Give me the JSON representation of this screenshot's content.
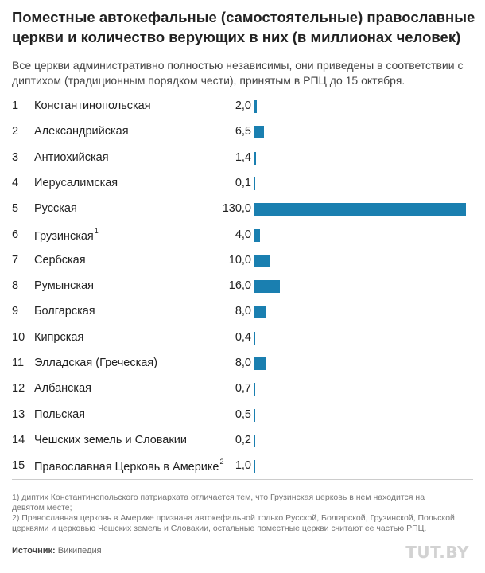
{
  "chart_data": {
    "type": "bar",
    "orientation": "horizontal",
    "title": "Поместные автокефальные (самостоятельные) православные церкви и количество верующих в них (в миллионах человек)",
    "subtitle": "Все церкви административно полностью независимы, они приведены в соответствии с диптихом (традиционным порядком чести), принятым в РПЦ до 15 октября.",
    "bar_color": "#1a7fb0",
    "xlim": [
      0,
      130
    ],
    "rows": [
      {
        "num": "1",
        "name": "Константинопольская",
        "note": "",
        "label": "2,0",
        "value": 2.0
      },
      {
        "num": "2",
        "name": "Александрийская",
        "note": "",
        "label": "6,5",
        "value": 6.5
      },
      {
        "num": "3",
        "name": "Антиохийская",
        "note": "",
        "label": "1,4",
        "value": 1.4
      },
      {
        "num": "4",
        "name": "Иерусалимская",
        "note": "",
        "label": "0,1",
        "value": 0.1
      },
      {
        "num": "5",
        "name": "Русская",
        "note": "",
        "label": "130,0",
        "value": 130.0
      },
      {
        "num": "6",
        "name": "Грузинская",
        "note": "1",
        "label": "4,0",
        "value": 4.0
      },
      {
        "num": "7",
        "name": "Сербская",
        "note": "",
        "label": "10,0",
        "value": 10.0
      },
      {
        "num": "8",
        "name": "Румынская",
        "note": "",
        "label": "16,0",
        "value": 16.0
      },
      {
        "num": "9",
        "name": "Болгарская",
        "note": "",
        "label": "8,0",
        "value": 8.0
      },
      {
        "num": "10",
        "name": "Кипрская",
        "note": "",
        "label": "0,4",
        "value": 0.4
      },
      {
        "num": "11",
        "name": "Элладская (Греческая)",
        "note": "",
        "label": "8,0",
        "value": 8.0
      },
      {
        "num": "12",
        "name": "Албанская",
        "note": "",
        "label": "0,7",
        "value": 0.7
      },
      {
        "num": "13",
        "name": "Польская",
        "note": "",
        "label": "0,5",
        "value": 0.5
      },
      {
        "num": "14",
        "name": "Чешских земель и Словакии",
        "note": "",
        "label": "0,2",
        "value": 0.2
      },
      {
        "num": "15",
        "name": "Православная Церковь в Америке",
        "note": "2",
        "label": "1,0",
        "value": 1.0
      }
    ]
  },
  "footnotes": [
    "1) диптих Константинопольского патриархата отличается тем, что Грузинская церковь в нем находится на девятом месте;",
    "2) Православная церковь в Америке признана автокефальной только Русской, Болгарской, Грузинской, Польской церквями и церковью Чешских земель и Словакии, остальные поместные церкви считают ее частью РПЦ."
  ],
  "source": {
    "label": "Источник:",
    "value": "Википедия"
  },
  "logo": "TUT.BY"
}
